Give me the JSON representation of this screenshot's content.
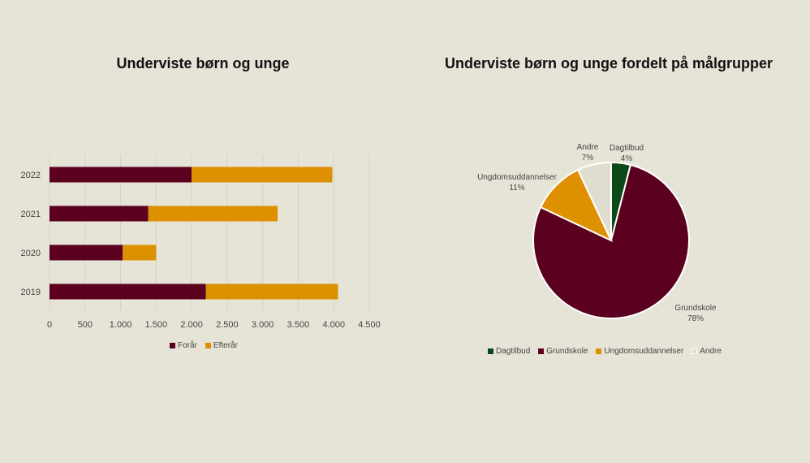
{
  "colors": {
    "background": "#e6e4d7",
    "foraar": "#5c0020",
    "efteraar": "#dd9000",
    "dagtilbud": "#0b4a16",
    "grundskole": "#5c0020",
    "ungdom": "#dd9000",
    "andre": "#deddce"
  },
  "chart_data": [
    {
      "type": "bar",
      "orientation": "horizontal",
      "stacked": true,
      "title": "Underviste børn og unge",
      "categories": [
        "2022",
        "2021",
        "2020",
        "2019"
      ],
      "series": [
        {
          "name": "Forår",
          "values": [
            2000,
            1390,
            1030,
            2200
          ]
        },
        {
          "name": "Efterår",
          "values": [
            1980,
            1820,
            470,
            1860
          ]
        }
      ],
      "xlim": [
        0,
        4500
      ],
      "xticks": [
        0,
        500,
        1000,
        1500,
        2000,
        2500,
        3000,
        3500,
        4000,
        4500
      ],
      "xtick_labels": [
        "0",
        "500",
        "1.000",
        "1.500",
        "2.000",
        "2.500",
        "3.000",
        "3.500",
        "4.000",
        "4.500"
      ],
      "grid": "vertical",
      "legend": "bottom"
    },
    {
      "type": "pie",
      "title": "Underviste børn og unge fordelt på målgrupper",
      "slices": [
        {
          "name": "Dagtilbud",
          "value": 4,
          "label": "4%"
        },
        {
          "name": "Grundskole",
          "value": 78,
          "label": "78%"
        },
        {
          "name": "Ungdomsuddannelser",
          "value": 11,
          "label": "11%"
        },
        {
          "name": "Andre",
          "value": 7,
          "label": "7%"
        }
      ],
      "legend": "bottom"
    }
  ]
}
